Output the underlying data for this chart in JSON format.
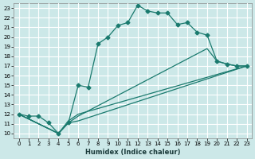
{
  "xlabel": "Humidex (Indice chaleur)",
  "bg_color": "#cce8e8",
  "grid_color": "#ffffff",
  "line_color": "#1a7a6e",
  "xlim": [
    -0.5,
    23.5
  ],
  "ylim": [
    9.5,
    23.5
  ],
  "xticks": [
    0,
    1,
    2,
    3,
    4,
    5,
    6,
    7,
    8,
    9,
    10,
    11,
    12,
    13,
    14,
    15,
    16,
    17,
    18,
    19,
    20,
    21,
    22,
    23
  ],
  "yticks": [
    10,
    11,
    12,
    13,
    14,
    15,
    16,
    17,
    18,
    19,
    20,
    21,
    22,
    23
  ],
  "line_main": [
    [
      0,
      12
    ],
    [
      1,
      11.8
    ],
    [
      2,
      11.8
    ],
    [
      3,
      11.1
    ],
    [
      4,
      10
    ],
    [
      5,
      11.1
    ],
    [
      6,
      15
    ],
    [
      7,
      14.8
    ],
    [
      8,
      19.3
    ],
    [
      9,
      20
    ],
    [
      10,
      21.2
    ],
    [
      11,
      21.5
    ],
    [
      12,
      23.3
    ],
    [
      13,
      22.7
    ],
    [
      14,
      22.5
    ],
    [
      15,
      22.5
    ],
    [
      16,
      21.3
    ],
    [
      17,
      21.5
    ],
    [
      18,
      20.5
    ],
    [
      19,
      20.2
    ],
    [
      20,
      17.5
    ],
    [
      21,
      17.2
    ],
    [
      22,
      17
    ],
    [
      23,
      17
    ]
  ],
  "line_diag1": [
    [
      0,
      12
    ],
    [
      4,
      10
    ],
    [
      5,
      11.1
    ],
    [
      6,
      11.3
    ],
    [
      23,
      17
    ]
  ],
  "line_diag2": [
    [
      0,
      12
    ],
    [
      4,
      10
    ],
    [
      5,
      11.1
    ],
    [
      6,
      11.8
    ],
    [
      19,
      18.8
    ],
    [
      20,
      17.5
    ],
    [
      21,
      17.2
    ],
    [
      22,
      17
    ],
    [
      23,
      17
    ]
  ],
  "line_diag3": [
    [
      0,
      12
    ],
    [
      4,
      10
    ],
    [
      5,
      11.3
    ],
    [
      6,
      12
    ],
    [
      23,
      17
    ]
  ]
}
